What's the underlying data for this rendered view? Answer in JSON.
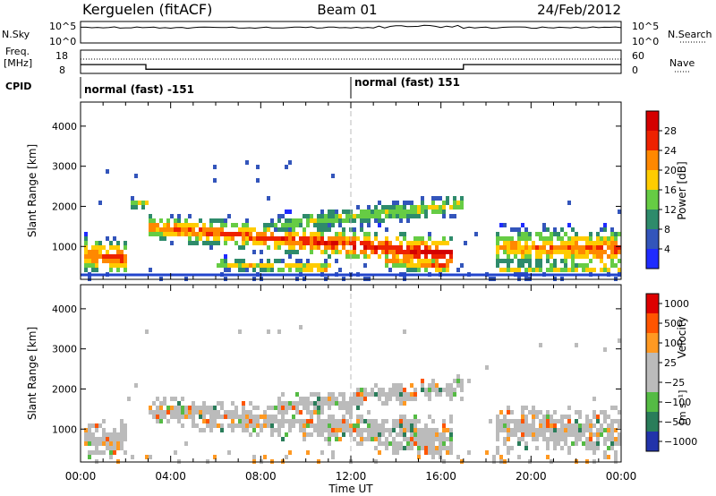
{
  "header": {
    "station": "Kerguelen (fitACF)",
    "beam": "Beam 01",
    "date": "24/Feb/2012"
  },
  "colors": {
    "axis": "#000000",
    "midline": "#bbbbbb",
    "baseline": "#2244cc"
  },
  "chart_data": [
    {
      "type": "line",
      "panel": "noise",
      "left_label": "N.Sky",
      "right_label": "N.Search",
      "left_ticks": [
        "10^5",
        "10^0"
      ],
      "right_ticks": [
        "10^5",
        "10^0"
      ]
    },
    {
      "type": "line",
      "panel": "frequency",
      "left_label_lines": [
        "Freq.",
        "[MHz]"
      ],
      "right_label": "Nave",
      "left_ticks": [
        "18",
        "8"
      ],
      "right_ticks": [
        "60",
        "0"
      ],
      "x": [
        0,
        2.9,
        2.9,
        17,
        17,
        24
      ],
      "freq_mhz": [
        11.8,
        11.8,
        9.8,
        9.8,
        11.8,
        11.8
      ],
      "ylim": [
        8,
        18
      ]
    },
    {
      "type": "table",
      "panel": "cpid",
      "label": "CPID",
      "segments": [
        {
          "start_ut": 0,
          "text": "normal (fast) -151"
        },
        {
          "start_ut": 12,
          "text": "normal (fast) 151"
        }
      ]
    },
    {
      "type": "heatmap",
      "panel": "power",
      "ylabel": "Slant Range [km]",
      "yticks": [
        "1000",
        "2000",
        "3000",
        "4000"
      ],
      "ylim": [
        180,
        4600
      ],
      "xlim": [
        0,
        24
      ],
      "colorbar_label": "Power [dB]",
      "colorbar_ticks": [
        "4",
        "8",
        "12",
        "16",
        "20",
        "24",
        "28"
      ],
      "colorbar_range": [
        0,
        32
      ],
      "colorbar_colors": [
        "#1f2bff",
        "#3355bb",
        "#2e8b6b",
        "#66cc44",
        "#ffcc00",
        "#ff8800",
        "#ee2200",
        "#d40000"
      ],
      "bands": [
        {
          "start": 0.1,
          "end": 2.0,
          "center": [
            850,
            750
          ],
          "width": [
            520,
            500
          ],
          "peak": [
            24,
            28
          ]
        },
        {
          "start": 2.9,
          "end": 16.5,
          "center": [
            1550,
            850
          ],
          "width": [
            380,
            520
          ],
          "peak": [
            24,
            30
          ]
        },
        {
          "start": 8.5,
          "end": 17.0,
          "center": [
            1600,
            2100
          ],
          "width": [
            300,
            320
          ],
          "peak": [
            16,
            18
          ]
        },
        {
          "start": 13.5,
          "end": 16.5,
          "center": [
            700,
            550
          ],
          "width": [
            300,
            260
          ],
          "peak": [
            20,
            26
          ]
        },
        {
          "start": 2.0,
          "end": 3.0,
          "center": [
            2100,
            2150
          ],
          "width": [
            200,
            200
          ],
          "peak": [
            14,
            18
          ]
        },
        {
          "start": 6.0,
          "end": 11.0,
          "center": [
            620,
            500
          ],
          "width": [
            200,
            200
          ],
          "peak": [
            16,
            24
          ]
        },
        {
          "start": 18.4,
          "end": 23.9,
          "center": [
            1050,
            980
          ],
          "width": [
            600,
            620
          ],
          "peak": [
            20,
            26
          ]
        },
        {
          "start": 18.4,
          "end": 23.9,
          "center": [
            480,
            520
          ],
          "width": [
            180,
            180
          ],
          "peak": [
            16,
            22
          ]
        }
      ]
    },
    {
      "type": "heatmap",
      "panel": "velocity",
      "ylabel": "Slant Range [km]",
      "yticks": [
        "1000",
        "2000",
        "3000",
        "4000"
      ],
      "ylim": [
        180,
        4600
      ],
      "xlim": [
        0,
        24
      ],
      "xticks": [
        "00:00",
        "04:00",
        "08:00",
        "12:00",
        "16:00",
        "20:00",
        "00:00"
      ],
      "xlabel": "Time UT",
      "colorbar_label_main": "Velocity",
      "colorbar_label_unit": "[m s⁻¹]",
      "colorbar_ticks": [
        "1000",
        "500",
        "100",
        "25",
        "−25",
        "−100",
        "−500",
        "−1000"
      ],
      "colorbar_colors": [
        "#2233aa",
        "#2a7d5a",
        "#55bb44",
        "#bbbbbb",
        "#bbbbbb",
        "#ff9922",
        "#ff5500",
        "#dd0000"
      ],
      "bands": [
        {
          "start": 0.1,
          "end": 2.0,
          "center": [
            850,
            750
          ],
          "width": [
            520,
            500
          ]
        },
        {
          "start": 2.9,
          "end": 16.5,
          "center": [
            1550,
            850
          ],
          "width": [
            380,
            520
          ]
        },
        {
          "start": 8.5,
          "end": 17.0,
          "center": [
            1600,
            2100
          ],
          "width": [
            300,
            320
          ]
        },
        {
          "start": 13.5,
          "end": 16.5,
          "center": [
            700,
            550
          ],
          "width": [
            300,
            260
          ]
        },
        {
          "start": 18.4,
          "end": 23.9,
          "center": [
            1050,
            980
          ],
          "width": [
            600,
            620
          ]
        }
      ]
    }
  ]
}
